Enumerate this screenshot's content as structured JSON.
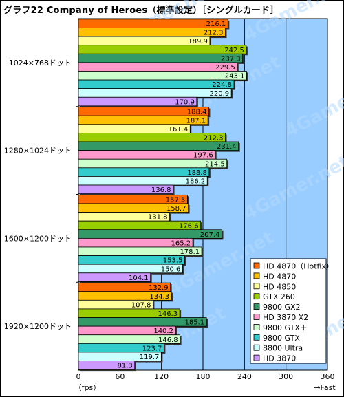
{
  "chart_data": {
    "type": "bar",
    "orientation": "horizontal",
    "title": "グラフ22  Company of Heroes（標準設定）［シングルカード］",
    "xlabel": "（fps）",
    "x_axis_note": "→Fast",
    "xlim": [
      0,
      360
    ],
    "xticks": [
      0,
      60,
      120,
      180,
      240,
      300,
      360
    ],
    "grid": true,
    "legend_position": "bottom-right",
    "categories": [
      "1024×768ドット",
      "1280×1024ドット",
      "1600×1200ドット",
      "1920×1200ドット"
    ],
    "series": [
      {
        "name": "HD 4870（Hotfix）",
        "color": "#ff6a00",
        "values": [
          216.1,
          188.4,
          157.5,
          132.9
        ]
      },
      {
        "name": "HD 4870",
        "color": "#ffc000",
        "values": [
          212.3,
          187.1,
          158.7,
          134.3
        ]
      },
      {
        "name": "HD 4850",
        "color": "#ffff99",
        "values": [
          189.9,
          161.4,
          131.8,
          107.8
        ]
      },
      {
        "name": "GTX 260",
        "color": "#9acd00",
        "values": [
          242.5,
          212.3,
          176.6,
          146.3
        ]
      },
      {
        "name": "9800 GX2",
        "color": "#339966",
        "values": [
          237.3,
          231.4,
          207.4,
          185.1
        ]
      },
      {
        "name": "HD 3870 X2",
        "color": "#ff99cc",
        "values": [
          229.5,
          197.6,
          165.2,
          140.2
        ]
      },
      {
        "name": "9800 GTX＋",
        "color": "#ccffcc",
        "values": [
          243.1,
          214.5,
          178.1,
          146.8
        ]
      },
      {
        "name": "9800 GTX",
        "color": "#33cccc",
        "values": [
          224.8,
          188.8,
          153.5,
          123.7
        ]
      },
      {
        "name": "8800 Ultra",
        "color": "#ccffff",
        "values": [
          220.9,
          186.2,
          150.6,
          119.7
        ]
      },
      {
        "name": "HD 3870",
        "color": "#cc99ff",
        "values": [
          170.9,
          136.8,
          104.1,
          81.3
        ]
      }
    ]
  },
  "colors": {
    "plot_background": "#99ccff",
    "watermark": "4Gamer.net"
  }
}
